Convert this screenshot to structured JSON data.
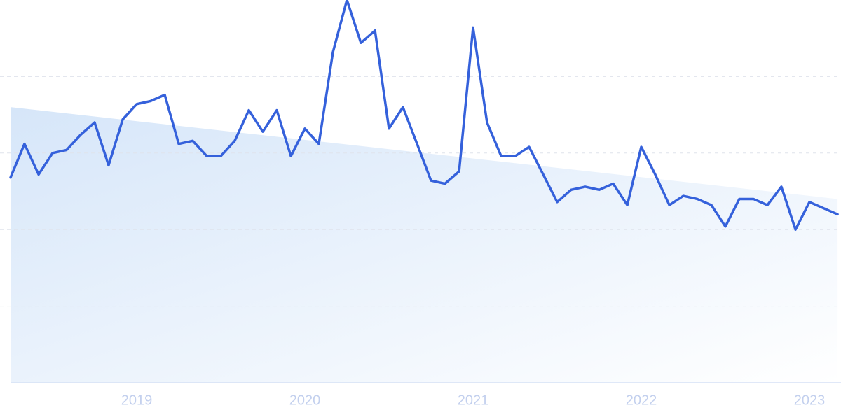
{
  "chart_data": {
    "type": "line",
    "x": [
      2018.25,
      2018.333,
      2018.417,
      2018.5,
      2018.583,
      2018.667,
      2018.75,
      2018.833,
      2018.917,
      2019,
      2019.083,
      2019.167,
      2019.25,
      2019.333,
      2019.417,
      2019.5,
      2019.583,
      2019.667,
      2019.75,
      2019.833,
      2019.917,
      2020,
      2020.083,
      2020.167,
      2020.25,
      2020.333,
      2020.417,
      2020.5,
      2020.583,
      2020.667,
      2020.75,
      2020.833,
      2020.917,
      2021,
      2021.083,
      2021.167,
      2021.25,
      2021.333,
      2021.417,
      2021.5,
      2021.583,
      2021.667,
      2021.75,
      2021.833,
      2021.917,
      2022,
      2022.083,
      2022.167,
      2022.25,
      2022.333,
      2022.417,
      2022.5,
      2022.583,
      2022.667,
      2022.75,
      2022.833,
      2022.917,
      2023,
      2023.083,
      2023.167
    ],
    "series": [
      {
        "color": "#3561db",
        "values": [
          67,
          78,
          68,
          75,
          76,
          81,
          85,
          71,
          86,
          91,
          92,
          94,
          78,
          79,
          74,
          74,
          79,
          89,
          82,
          89,
          74,
          83,
          78,
          108,
          125,
          111,
          115,
          83,
          90,
          78,
          66,
          65,
          69,
          116,
          85,
          74,
          74,
          77,
          68,
          59,
          63,
          64,
          63,
          65,
          58,
          77,
          68,
          58,
          61,
          60,
          58,
          51,
          60,
          60,
          58,
          64,
          50,
          59,
          57,
          55
        ]
      }
    ],
    "trend": {
      "x": [
        2018.25,
        2023.167
      ],
      "values": [
        90,
        60
      ],
      "color": "#d6e6f9"
    },
    "xlim": [
      2018.1875,
      2023.1875
    ],
    "xticks": [
      2019,
      2020,
      2021,
      2022,
      2023
    ],
    "ylim": [
      0,
      125
    ],
    "yticks": [
      0,
      25,
      50,
      75,
      100
    ],
    "grid": true
  }
}
